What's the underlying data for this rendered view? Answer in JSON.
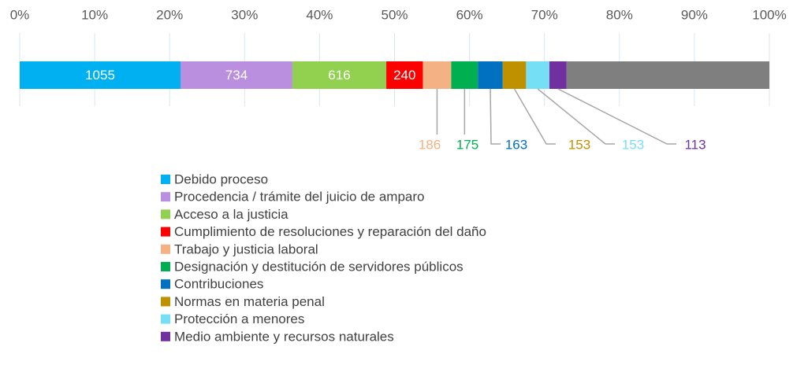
{
  "chart_data": {
    "type": "stacked-bar-100",
    "series": [
      {
        "name": "Debido proceso",
        "color": "#00b0f0",
        "values": [
          1055
        ]
      },
      {
        "name": "Procedencia / trámite del juicio de amparo",
        "color": "#bb8fdf",
        "values": [
          734
        ]
      },
      {
        "name": "Acceso a la justicia",
        "color": "#92d050",
        "values": [
          616
        ]
      },
      {
        "name": "Cumplimiento de resoluciones y reparación del daño",
        "color": "#ff0000",
        "values": [
          240
        ]
      },
      {
        "name": "Trabajo y justicia laboral",
        "color": "#f4b183",
        "values": [
          186
        ]
      },
      {
        "name": "Designación y destitución de servidores públicos",
        "color": "#00b050",
        "values": [
          175
        ]
      },
      {
        "name": "Contribuciones",
        "color": "#0070c0",
        "values": [
          163
        ]
      },
      {
        "name": "Normas en materia penal",
        "color": "#bf9000",
        "values": [
          153
        ]
      },
      {
        "name": "Protección a menores",
        "color": "#75dff5",
        "values": [
          153
        ]
      },
      {
        "name": "Medio ambiente y recursos naturales",
        "color": "#7030a0",
        "values": [
          113
        ]
      },
      {
        "name": null,
        "color": "#7f7f7f",
        "values": [
          1330
        ]
      }
    ],
    "xlim": [
      0,
      100
    ],
    "xticks": [
      {
        "value": 0,
        "label": "0%"
      },
      {
        "value": 10,
        "label": "10%"
      },
      {
        "value": 20,
        "label": "20%"
      },
      {
        "value": 30,
        "label": "30%"
      },
      {
        "value": 40,
        "label": "40%"
      },
      {
        "value": 50,
        "label": "50%"
      },
      {
        "value": 60,
        "label": "60%"
      },
      {
        "value": 70,
        "label": "70%"
      },
      {
        "value": 80,
        "label": "80%"
      },
      {
        "value": 90,
        "label": "90%"
      },
      {
        "value": 100,
        "label": "100%"
      }
    ],
    "grid": true
  }
}
